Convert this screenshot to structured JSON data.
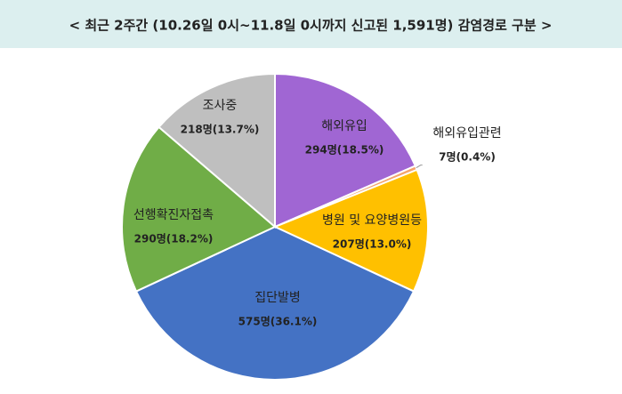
{
  "chart_data": {
    "type": "pie",
    "title": "< 최근 2주간 (10.26일 0시~11.8일 0시까지 신고된 1,591명)  감염경로 구분 >",
    "categories": [
      "해외유입",
      "해외유입관련",
      "병원 및 요양병원등",
      "집단발병",
      "선행확진자접촉",
      "조사중"
    ],
    "values": [
      294,
      7,
      207,
      575,
      290,
      218
    ],
    "value_labels": [
      "294명(18.5%)",
      "7명(0.4%)",
      "207명(13.0%)",
      "575명(36.1%)",
      "290명(18.2%)",
      "218명(13.7%)"
    ],
    "colors": [
      "#a066d3",
      "#f4a46c",
      "#ffc000",
      "#4472c4",
      "#70ad47",
      "#bfbfbf"
    ]
  }
}
